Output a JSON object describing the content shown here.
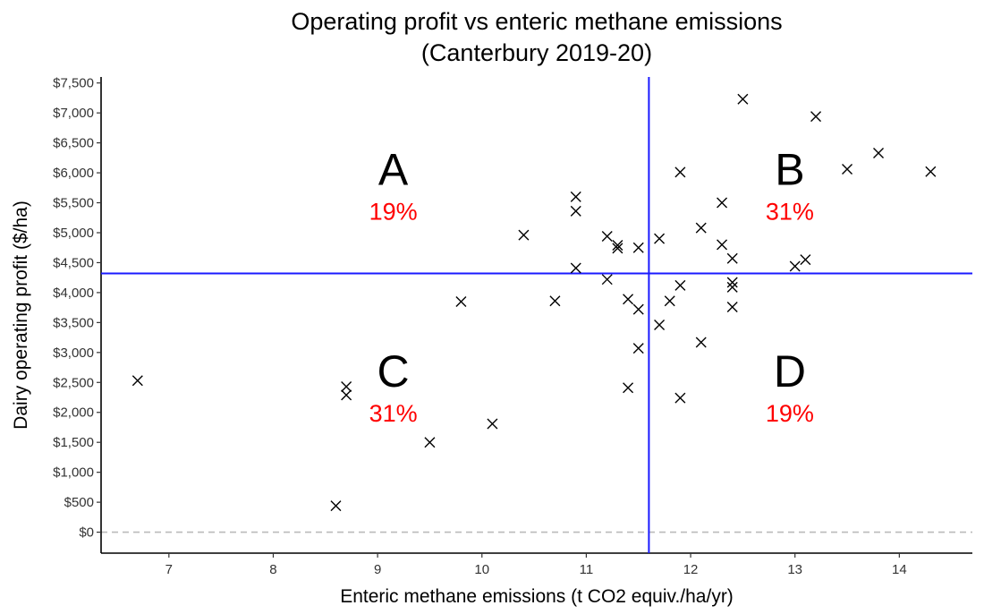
{
  "chart_data": {
    "type": "scatter",
    "title_lines": [
      "Operating profit vs enteric methane emissions",
      "(Canterbury 2019-20)"
    ],
    "xlabel": "Enteric methane emissions (t CO2 equiv./ha/yr)",
    "ylabel": "Dairy operating profit ($/ha)",
    "xlim": [
      6.35,
      14.7
    ],
    "ylim": [
      -350,
      7600
    ],
    "x_ticks": [
      7,
      8,
      9,
      10,
      11,
      12,
      13,
      14
    ],
    "x_tick_labels": [
      "7",
      "8",
      "9",
      "10",
      "11",
      "12",
      "13",
      "14"
    ],
    "y_ticks": [
      0,
      500,
      1000,
      1500,
      2000,
      2500,
      3000,
      3500,
      4000,
      4500,
      5000,
      5500,
      6000,
      6500,
      7000,
      7500
    ],
    "y_tick_labels": [
      "$0",
      "$500",
      "$1,000",
      "$1,500",
      "$2,000",
      "$2,500",
      "$3,000",
      "$3,500",
      "$4,000",
      "$4,500",
      "$5,000",
      "$5,500",
      "$6,000",
      "$6,500",
      "$7,000",
      "$7,500"
    ],
    "marker": "x",
    "marker_color": "#000000",
    "grid": false,
    "points": [
      {
        "x": 6.7,
        "y": 2530
      },
      {
        "x": 8.6,
        "y": 440
      },
      {
        "x": 8.7,
        "y": 2430
      },
      {
        "x": 8.7,
        "y": 2290
      },
      {
        "x": 9.5,
        "y": 1500
      },
      {
        "x": 9.8,
        "y": 3850
      },
      {
        "x": 10.1,
        "y": 1810
      },
      {
        "x": 10.4,
        "y": 4960
      },
      {
        "x": 10.7,
        "y": 3860
      },
      {
        "x": 10.9,
        "y": 5600
      },
      {
        "x": 10.9,
        "y": 5360
      },
      {
        "x": 10.9,
        "y": 4410
      },
      {
        "x": 11.2,
        "y": 4940
      },
      {
        "x": 11.2,
        "y": 4220
      },
      {
        "x": 11.3,
        "y": 4790
      },
      {
        "x": 11.3,
        "y": 4740
      },
      {
        "x": 11.4,
        "y": 3890
      },
      {
        "x": 11.4,
        "y": 2410
      },
      {
        "x": 11.5,
        "y": 4750
      },
      {
        "x": 11.5,
        "y": 3720
      },
      {
        "x": 11.5,
        "y": 3070
      },
      {
        "x": 11.7,
        "y": 4900
      },
      {
        "x": 11.7,
        "y": 3460
      },
      {
        "x": 11.8,
        "y": 3860
      },
      {
        "x": 11.9,
        "y": 6010
      },
      {
        "x": 11.9,
        "y": 4120
      },
      {
        "x": 11.9,
        "y": 2240
      },
      {
        "x": 12.1,
        "y": 5080
      },
      {
        "x": 12.1,
        "y": 3170
      },
      {
        "x": 12.3,
        "y": 5500
      },
      {
        "x": 12.3,
        "y": 4800
      },
      {
        "x": 12.4,
        "y": 4570
      },
      {
        "x": 12.4,
        "y": 4170
      },
      {
        "x": 12.4,
        "y": 4090
      },
      {
        "x": 12.4,
        "y": 3760
      },
      {
        "x": 12.5,
        "y": 7230
      },
      {
        "x": 13.0,
        "y": 4440
      },
      {
        "x": 13.1,
        "y": 4550
      },
      {
        "x": 13.2,
        "y": 6940
      },
      {
        "x": 13.5,
        "y": 6060
      },
      {
        "x": 13.8,
        "y": 6330
      },
      {
        "x": 14.3,
        "y": 6020
      }
    ],
    "reference_lines": {
      "vertical_x": 11.6,
      "horizontal_y": 4320,
      "color": "#1a1aff",
      "zero_line_y": 0,
      "zero_line_color": "#bbbbbb",
      "zero_line_style": "dashed"
    },
    "quadrants": [
      {
        "letter": "A",
        "percent": "19%",
        "x": 9.15,
        "y": 6050
      },
      {
        "letter": "B",
        "percent": "31%",
        "x": 12.95,
        "y": 6050
      },
      {
        "letter": "C",
        "percent": "31%",
        "x": 9.15,
        "y": 2680
      },
      {
        "letter": "D",
        "percent": "19%",
        "x": 12.95,
        "y": 2680
      }
    ],
    "percent_color": "#ff0000"
  }
}
